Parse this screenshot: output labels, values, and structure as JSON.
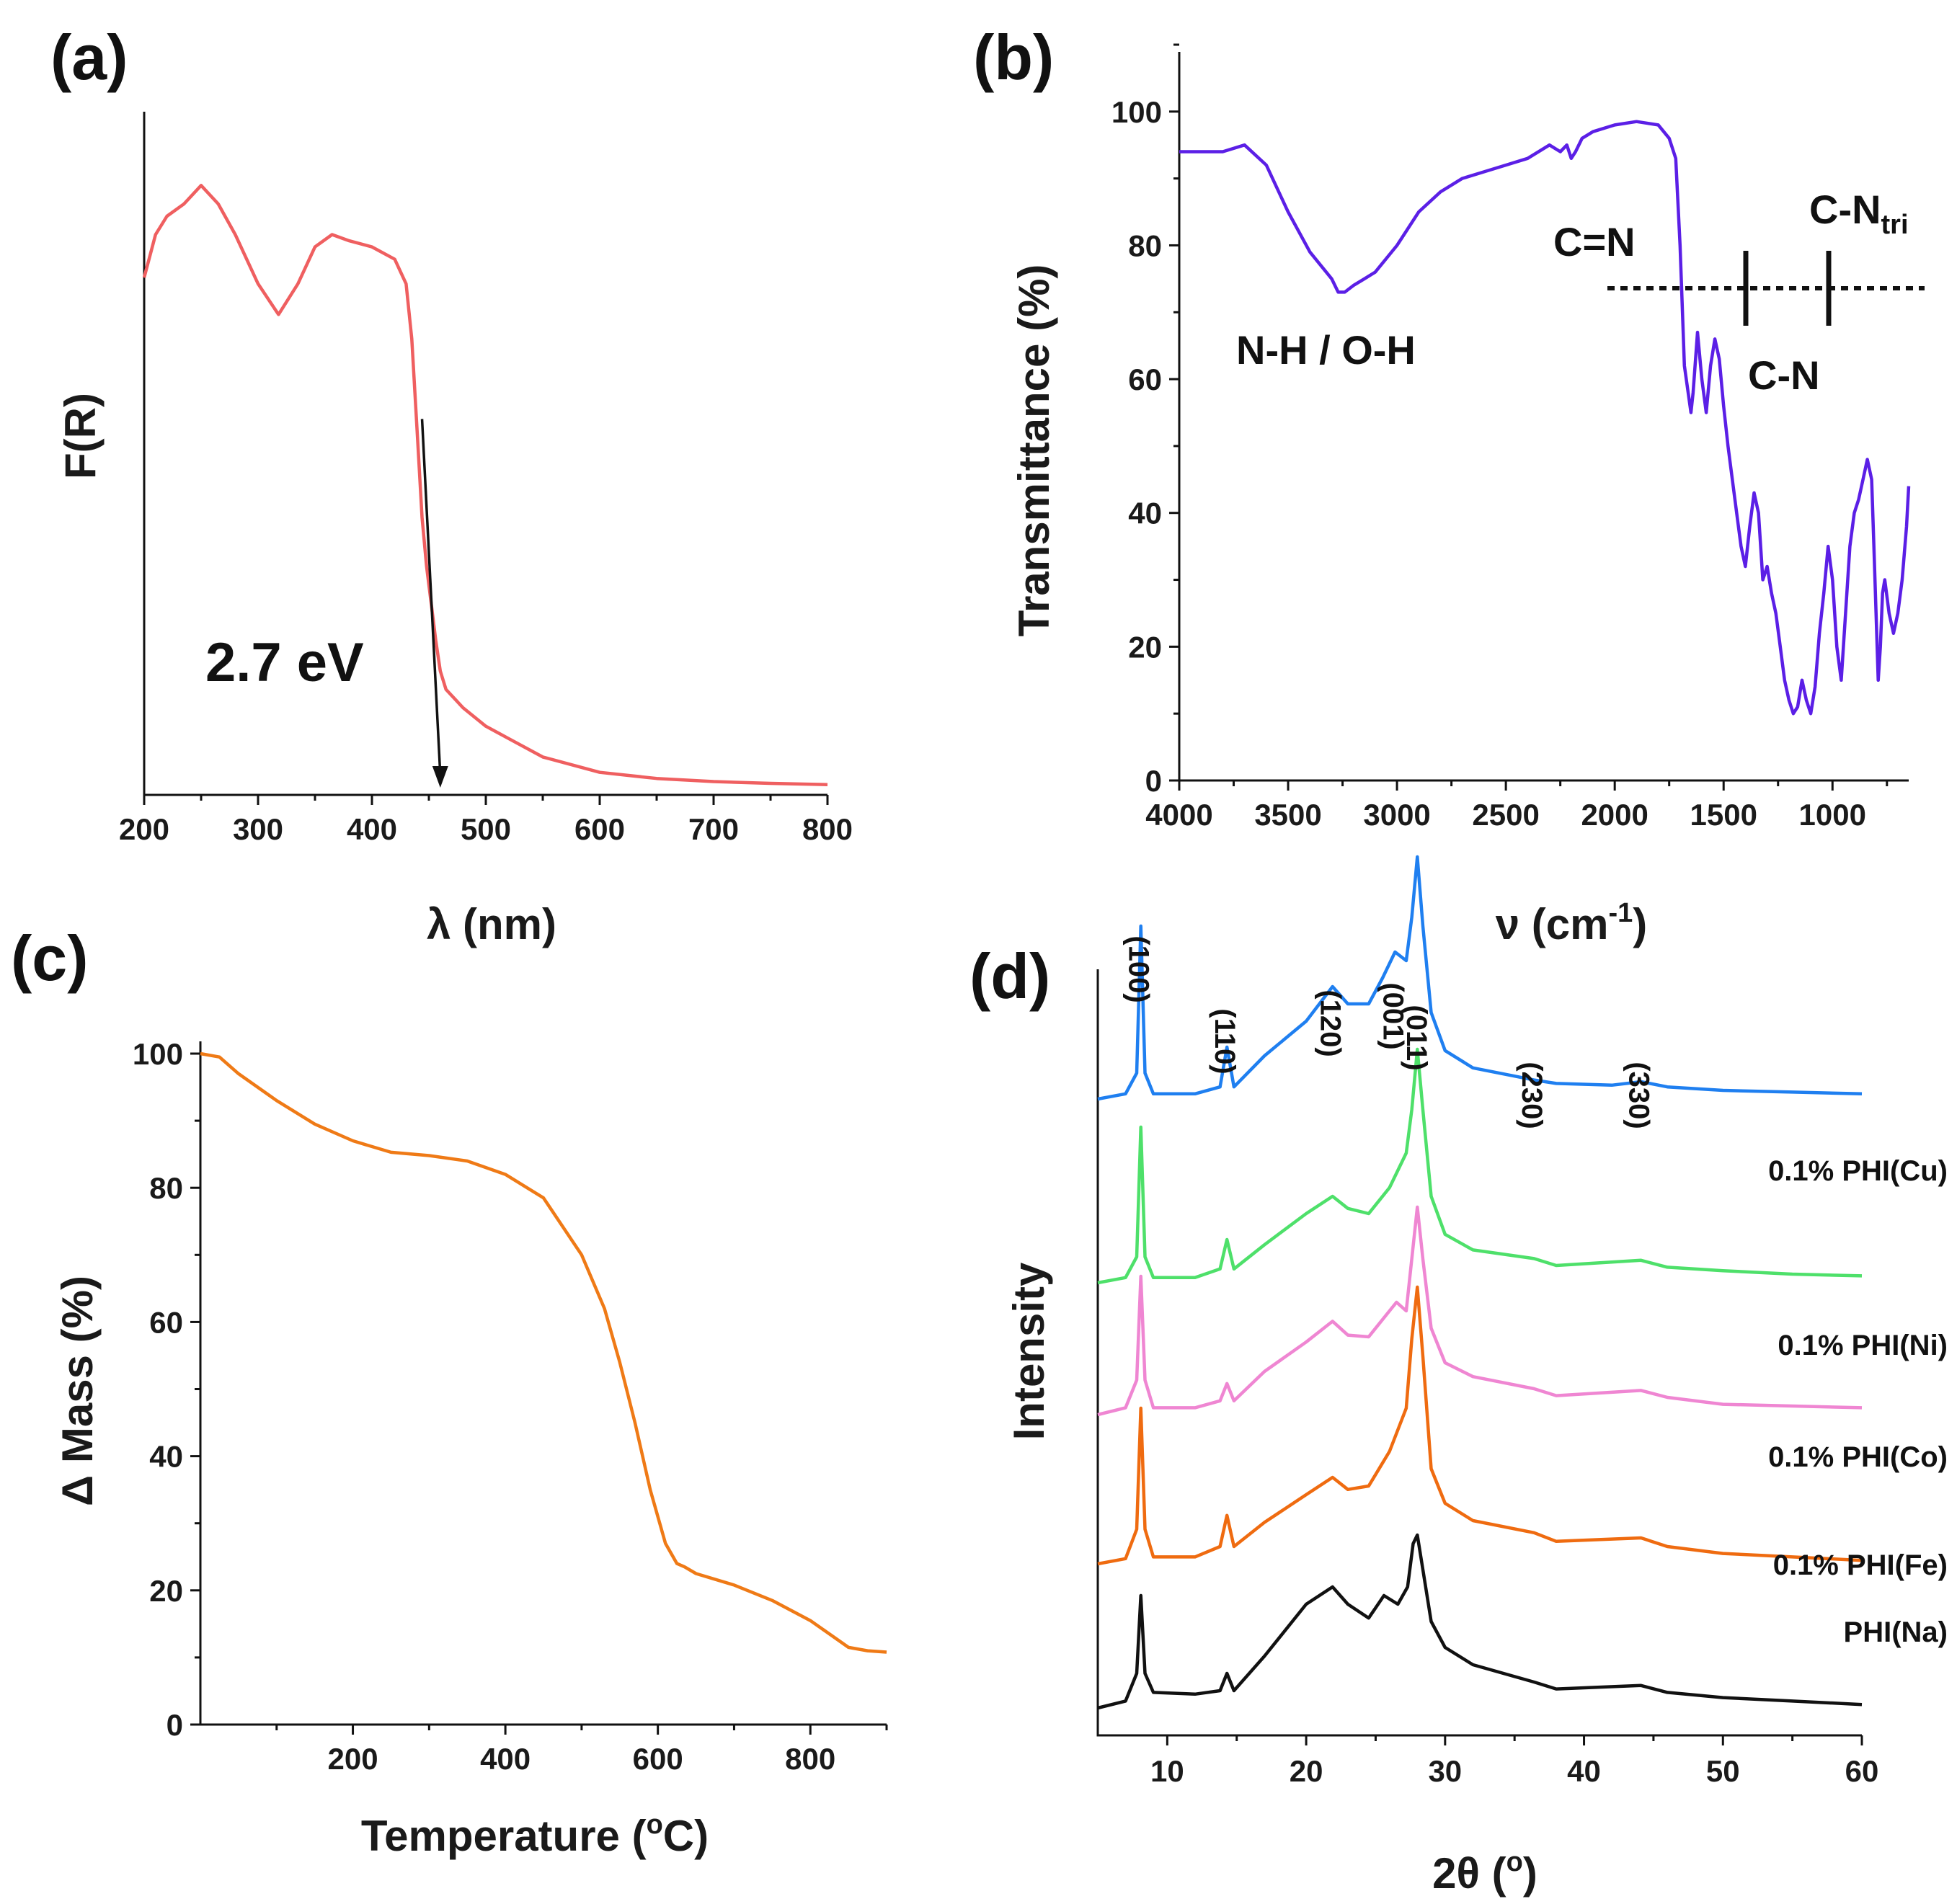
{
  "chart_data": [
    {
      "panel": "(a)",
      "type": "line",
      "xlabel": "λ (nm)",
      "ylabel": "F(R)",
      "xlim": [
        200,
        800
      ],
      "ylim": [
        0,
        1.1
      ],
      "xticks": [
        200,
        300,
        400,
        500,
        600,
        700,
        800
      ],
      "color": "#ef5f60",
      "annotation": "2.7 eV",
      "arrow": {
        "from": [
          444,
          0.6
        ],
        "to": [
          460,
          0.0
        ]
      },
      "x": [
        200,
        210,
        220,
        235,
        250,
        265,
        280,
        300,
        318,
        335,
        350,
        365,
        380,
        400,
        420,
        430,
        435,
        440,
        444,
        448,
        452,
        456,
        460,
        465,
        470,
        480,
        500,
        520,
        550,
        600,
        650,
        700,
        750,
        800
      ],
      "y": [
        0.83,
        0.9,
        0.93,
        0.95,
        0.98,
        0.95,
        0.9,
        0.82,
        0.77,
        0.82,
        0.88,
        0.9,
        0.89,
        0.88,
        0.86,
        0.82,
        0.73,
        0.57,
        0.44,
        0.36,
        0.3,
        0.24,
        0.19,
        0.16,
        0.15,
        0.13,
        0.1,
        0.08,
        0.05,
        0.025,
        0.015,
        0.01,
        0.007,
        0.005
      ]
    },
    {
      "panel": "(b)",
      "type": "line",
      "xlabel": "ν (cm",
      "xlabel_sup": "-1",
      "xlabel_end": ")",
      "ylabel": "Transmittance (%)",
      "xlim": [
        4000,
        650
      ],
      "ylim": [
        0,
        110
      ],
      "xticks": [
        4000,
        3500,
        3000,
        2500,
        2000,
        1500,
        1000
      ],
      "yticks": [
        0,
        20,
        40,
        60,
        80,
        100
      ],
      "color": "#5b1fe6",
      "annotations": [
        "N-H / O-H",
        "C=N",
        "C-N",
        "C-N",
        "tri"
      ],
      "x": [
        4000,
        3800,
        3700,
        3600,
        3500,
        3400,
        3350,
        3300,
        3270,
        3240,
        3200,
        3150,
        3100,
        3000,
        2900,
        2800,
        2700,
        2600,
        2500,
        2400,
        2300,
        2250,
        2220,
        2200,
        2180,
        2150,
        2100,
        2000,
        1900,
        1800,
        1750,
        1720,
        1700,
        1680,
        1650,
        1640,
        1620,
        1600,
        1580,
        1560,
        1540,
        1520,
        1500,
        1480,
        1460,
        1440,
        1420,
        1400,
        1380,
        1360,
        1340,
        1320,
        1300,
        1280,
        1260,
        1240,
        1220,
        1200,
        1180,
        1160,
        1140,
        1120,
        1100,
        1080,
        1060,
        1040,
        1020,
        1000,
        980,
        960,
        940,
        920,
        900,
        880,
        860,
        840,
        820,
        810,
        800,
        790,
        780,
        770,
        760,
        740,
        720,
        700,
        680,
        660,
        650
      ],
      "y": [
        94,
        94,
        95,
        92,
        85,
        79,
        77,
        75,
        73,
        73,
        74,
        75,
        76,
        80,
        85,
        88,
        90,
        91,
        92,
        93,
        95,
        94,
        95,
        93,
        94,
        96,
        97,
        98,
        98.5,
        98,
        96,
        93,
        80,
        62,
        55,
        58,
        67,
        60,
        55,
        62,
        66,
        63,
        56,
        50,
        45,
        40,
        35,
        32,
        38,
        43,
        40,
        30,
        32,
        28,
        25,
        20,
        15,
        12,
        10,
        11,
        15,
        12,
        10,
        14,
        22,
        28,
        35,
        30,
        20,
        15,
        25,
        35,
        40,
        42,
        45,
        48,
        45,
        35,
        25,
        15,
        20,
        28,
        30,
        25,
        22,
        25,
        30,
        38,
        44
      ]
    },
    {
      "panel": "(c)",
      "type": "line",
      "xlabel": "Temperature (",
      "xlabel_sup": "o",
      "xlabel_end": "C)",
      "ylabel": "Δ Mass (%)",
      "xlim": [
        0,
        900
      ],
      "ylim": [
        0,
        100
      ],
      "xticks": [
        200,
        400,
        600,
        800
      ],
      "yticks": [
        0,
        20,
        40,
        60,
        80,
        100
      ],
      "color": "#ef7a16",
      "x": [
        0,
        25,
        50,
        100,
        150,
        200,
        250,
        300,
        350,
        400,
        450,
        500,
        530,
        550,
        570,
        590,
        610,
        625,
        635,
        650,
        700,
        750,
        800,
        850,
        875,
        900
      ],
      "y": [
        100,
        99.5,
        97,
        93,
        89.5,
        87,
        85.3,
        84.8,
        84,
        82,
        78.5,
        70,
        62,
        54,
        45,
        35,
        27,
        24,
        23.5,
        22.5,
        20.8,
        18.5,
        15.5,
        11.5,
        11,
        10.8
      ]
    },
    {
      "panel": "(d)",
      "type": "line",
      "xlabel": "2θ (",
      "xlabel_sup": "o",
      "xlabel_end": ")",
      "ylabel": "Intensity",
      "xlim": [
        5,
        60
      ],
      "xticks": [
        10,
        20,
        30,
        40,
        50,
        60
      ],
      "peaks_hkl": [
        {
          "label": "(100)",
          "x": 8.1
        },
        {
          "label": "(110)",
          "x": 14.3
        },
        {
          "label": "(120)",
          "x": 21.9
        },
        {
          "label": "(001)",
          "x": 26.4
        },
        {
          "label": "(011)",
          "x": 28.1
        },
        {
          "label": "(230)",
          "x": 36.4
        },
        {
          "label": "(330)",
          "x": 44.1
        }
      ],
      "series": [
        {
          "name": "0.1% PHI(Cu)",
          "color": "#1f7ff0",
          "offset": 4,
          "x": [
            5,
            7,
            7.8,
            8.1,
            8.4,
            9,
            12,
            13.8,
            14.3,
            14.8,
            17,
            20,
            21.9,
            23,
            24.5,
            25.5,
            26.4,
            27.2,
            27.6,
            28,
            28.4,
            29,
            30,
            32,
            36.4,
            38,
            42,
            44.1,
            46,
            50,
            55,
            60
          ],
          "y": [
            0,
            0.3,
            1.5,
            10,
            1.5,
            0.3,
            0.3,
            0.7,
            3,
            0.7,
            2.5,
            4.5,
            6.5,
            5.5,
            5.5,
            7,
            8.5,
            8,
            10.5,
            14,
            10,
            5,
            2.8,
            1.8,
            1.1,
            0.9,
            0.8,
            1.0,
            0.7,
            0.5,
            0.4,
            0.3
          ]
        },
        {
          "name": "0.1% PHI(Ni)",
          "color": "#4ee06a",
          "offset": 3,
          "x": [
            5,
            7,
            7.8,
            8.1,
            8.4,
            9,
            12,
            13.8,
            14.3,
            14.8,
            17,
            20,
            21.9,
            23,
            24.5,
            26,
            27.2,
            27.6,
            28,
            28.4,
            29,
            30,
            32,
            36.4,
            38,
            44.1,
            46,
            50,
            55,
            60
          ],
          "y": [
            0,
            0.3,
            1.5,
            9,
            1.5,
            0.3,
            0.3,
            0.8,
            2.5,
            0.8,
            2.2,
            4,
            5,
            4.3,
            4,
            5.5,
            7.5,
            10,
            13.5,
            10,
            5,
            2.8,
            1.9,
            1.4,
            1.0,
            1.3,
            0.9,
            0.7,
            0.5,
            0.4
          ]
        },
        {
          "name": "0.1% PHI(Co)",
          "color": "#ef86d2",
          "offset": 2,
          "x": [
            5,
            7,
            7.8,
            8.1,
            8.4,
            9,
            12,
            13.8,
            14.3,
            14.8,
            17,
            20,
            21.9,
            23,
            24.5,
            26,
            26.5,
            27.2,
            27.6,
            28,
            28.4,
            29,
            30,
            32,
            36.4,
            38,
            44.1,
            46,
            50,
            55,
            60
          ],
          "y": [
            0,
            0.4,
            2,
            8,
            2,
            0.4,
            0.4,
            0.8,
            1.8,
            0.8,
            2.5,
            4.2,
            5.4,
            4.6,
            4.5,
            6,
            6.5,
            6,
            9,
            12,
            9,
            5,
            3,
            2.2,
            1.5,
            1.1,
            1.4,
            1.0,
            0.6,
            0.5,
            0.4
          ]
        },
        {
          "name": "0.1% PHI(Fe)",
          "color": "#ef6b10",
          "offset": 1,
          "x": [
            5,
            7,
            7.8,
            8.1,
            8.4,
            9,
            12,
            13.8,
            14.3,
            14.8,
            17,
            20,
            21.9,
            23,
            24.5,
            26,
            27.2,
            27.6,
            28,
            28.4,
            29,
            30,
            32,
            36.4,
            38,
            44.1,
            46,
            50,
            55,
            60
          ],
          "y": [
            0,
            0.3,
            2,
            9,
            2,
            0.4,
            0.4,
            1,
            2.8,
            1,
            2.4,
            4,
            5,
            4.3,
            4.5,
            6.5,
            9,
            13,
            16,
            12,
            5.5,
            3.5,
            2.5,
            1.8,
            1.3,
            1.5,
            1.0,
            0.6,
            0.4,
            0.2
          ]
        },
        {
          "name": "PHI(Na)",
          "color": "#111111",
          "offset": 0,
          "x": [
            5,
            7,
            7.8,
            8.1,
            8.4,
            9,
            12,
            13.8,
            14.3,
            14.8,
            17,
            20,
            21.9,
            23,
            24.5,
            25.6,
            26.6,
            27.3,
            27.7,
            28,
            28.4,
            29,
            30,
            32,
            36.4,
            38,
            44.1,
            46,
            50,
            55,
            60
          ],
          "y": [
            0,
            0.4,
            2,
            6.5,
            2,
            0.9,
            0.8,
            1,
            2,
            1,
            3,
            6,
            7,
            6,
            5.2,
            6.5,
            6,
            7,
            9.5,
            10,
            8,
            5,
            3.5,
            2.5,
            1.5,
            1.1,
            1.3,
            0.9,
            0.6,
            0.4,
            0.2
          ]
        }
      ]
    }
  ]
}
